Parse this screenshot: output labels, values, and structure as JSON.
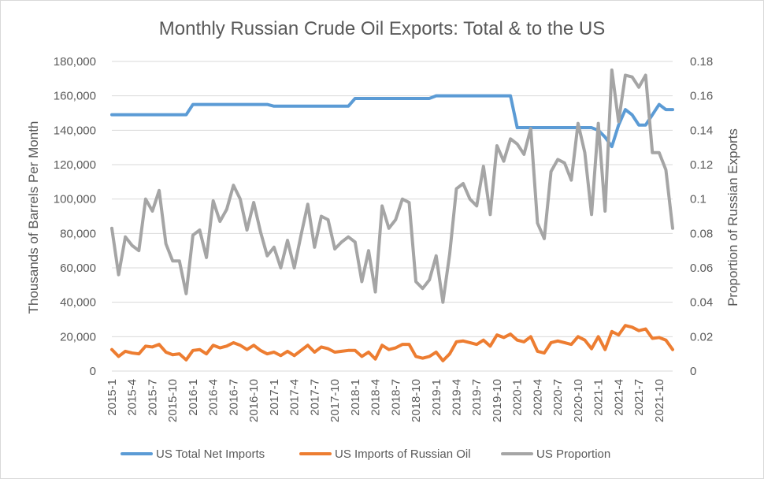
{
  "chart_data": {
    "type": "line",
    "title": "Monthly Russian Crude Oil Exports: Total & to the US",
    "ylabel": "Thousands of Barrels Per Month",
    "y2label": "Proportion of Russian Exports",
    "ylim": [
      0,
      180000
    ],
    "y2lim": [
      0,
      0.18
    ],
    "yticks": [
      "0",
      "20,000",
      "40,000",
      "60,000",
      "80,000",
      "100,000",
      "120,000",
      "140,000",
      "160,000",
      "180,000"
    ],
    "y2ticks": [
      "0",
      "0.02",
      "0.04",
      "0.06",
      "0.08",
      "0.1",
      "0.12",
      "0.14",
      "0.16",
      "0.18"
    ],
    "xtick_labels": [
      "2015-1",
      "2015-4",
      "2015-7",
      "2015-10",
      "2016-1",
      "2016-4",
      "2016-7",
      "2016-10",
      "2017-1",
      "2017-4",
      "2017-7",
      "2017-10",
      "2018-1",
      "2018-4",
      "2018-7",
      "2018-10",
      "2019-1",
      "2019-4",
      "2019-7",
      "2019-10",
      "2020-1",
      "2020-4",
      "2020-7",
      "2020-10",
      "2021-1",
      "2021-4",
      "2021-7",
      "2021-10"
    ],
    "grid": "horizontal",
    "legend_position": "bottom",
    "categories": [
      "2015-1",
      "2015-2",
      "2015-3",
      "2015-4",
      "2015-5",
      "2015-6",
      "2015-7",
      "2015-8",
      "2015-9",
      "2015-10",
      "2015-11",
      "2015-12",
      "2016-1",
      "2016-2",
      "2016-3",
      "2016-4",
      "2016-5",
      "2016-6",
      "2016-7",
      "2016-8",
      "2016-9",
      "2016-10",
      "2016-11",
      "2016-12",
      "2017-1",
      "2017-2",
      "2017-3",
      "2017-4",
      "2017-5",
      "2017-6",
      "2017-7",
      "2017-8",
      "2017-9",
      "2017-10",
      "2017-11",
      "2017-12",
      "2018-1",
      "2018-2",
      "2018-3",
      "2018-4",
      "2018-5",
      "2018-6",
      "2018-7",
      "2018-8",
      "2018-9",
      "2018-10",
      "2018-11",
      "2018-12",
      "2019-1",
      "2019-2",
      "2019-3",
      "2019-4",
      "2019-5",
      "2019-6",
      "2019-7",
      "2019-8",
      "2019-9",
      "2019-10",
      "2019-11",
      "2019-12",
      "2020-1",
      "2020-2",
      "2020-3",
      "2020-4",
      "2020-5",
      "2020-6",
      "2020-7",
      "2020-8",
      "2020-9",
      "2020-10",
      "2020-11",
      "2020-12",
      "2021-1",
      "2021-2",
      "2021-3",
      "2021-4",
      "2021-5",
      "2021-6",
      "2021-7",
      "2021-8",
      "2021-9",
      "2021-10",
      "2021-11",
      "2021-12"
    ],
    "series": [
      {
        "name": "US Total Net Imports",
        "axis": "left",
        "color": "#5b9bd5",
        "values": [
          149000,
          149000,
          149000,
          149000,
          149000,
          149000,
          149000,
          149000,
          149000,
          149000,
          149000,
          149000,
          155000,
          155000,
          155000,
          155000,
          155000,
          155000,
          155000,
          155000,
          155000,
          155000,
          155000,
          155000,
          154000,
          154000,
          154000,
          154000,
          154000,
          154000,
          154000,
          154000,
          154000,
          154000,
          154000,
          154000,
          158500,
          158500,
          158500,
          158500,
          158500,
          158500,
          158500,
          158500,
          158500,
          158500,
          158500,
          158500,
          160000,
          160000,
          160000,
          160000,
          160000,
          160000,
          160000,
          160000,
          160000,
          160000,
          160000,
          160000,
          141500,
          141500,
          141500,
          141500,
          141500,
          141500,
          141500,
          141500,
          141500,
          141500,
          141500,
          141500,
          140000,
          136000,
          130500,
          143000,
          152000,
          149000,
          143000,
          143000,
          149000,
          155000,
          152000,
          152000
        ]
      },
      {
        "name": "US Imports of Russian Oil",
        "axis": "left",
        "color": "#ed7d31",
        "values": [
          12500,
          8500,
          11500,
          10500,
          10000,
          14500,
          14000,
          15500,
          11000,
          9500,
          10000,
          6500,
          12000,
          12500,
          10000,
          15000,
          13500,
          14500,
          16500,
          15000,
          12500,
          15000,
          12000,
          10000,
          11000,
          9000,
          11500,
          9000,
          12000,
          15000,
          11000,
          14000,
          13000,
          11000,
          11500,
          12000,
          12000,
          8500,
          11000,
          7000,
          15000,
          12500,
          13500,
          15500,
          15500,
          8500,
          7500,
          8500,
          11000,
          6000,
          10000,
          17000,
          17500,
          16500,
          15500,
          18000,
          14500,
          21000,
          19500,
          21500,
          18000,
          17000,
          20000,
          11500,
          10500,
          16500,
          17500,
          16500,
          15500,
          20000,
          18000,
          13000,
          20000,
          12500,
          23000,
          21000,
          26500,
          25500,
          23500,
          24500,
          19000,
          19500,
          18000,
          12500
        ]
      },
      {
        "name": "US Proportion",
        "axis": "right",
        "color": "#a5a5a5",
        "values": [
          0.083,
          0.056,
          0.078,
          0.073,
          0.07,
          0.1,
          0.093,
          0.105,
          0.074,
          0.064,
          0.064,
          0.045,
          0.079,
          0.082,
          0.066,
          0.099,
          0.087,
          0.094,
          0.108,
          0.1,
          0.082,
          0.098,
          0.081,
          0.067,
          0.072,
          0.06,
          0.076,
          0.06,
          0.079,
          0.097,
          0.072,
          0.09,
          0.088,
          0.071,
          0.075,
          0.078,
          0.075,
          0.052,
          0.07,
          0.046,
          0.096,
          0.083,
          0.088,
          0.1,
          0.098,
          0.052,
          0.048,
          0.053,
          0.067,
          0.04,
          0.068,
          0.106,
          0.109,
          0.1,
          0.096,
          0.119,
          0.091,
          0.131,
          0.122,
          0.135,
          0.132,
          0.126,
          0.141,
          0.086,
          0.077,
          0.116,
          0.123,
          0.121,
          0.111,
          0.144,
          0.127,
          0.091,
          0.144,
          0.093,
          0.175,
          0.145,
          0.172,
          0.171,
          0.165,
          0.172,
          0.127,
          0.127,
          0.117,
          0.083
        ]
      }
    ]
  }
}
